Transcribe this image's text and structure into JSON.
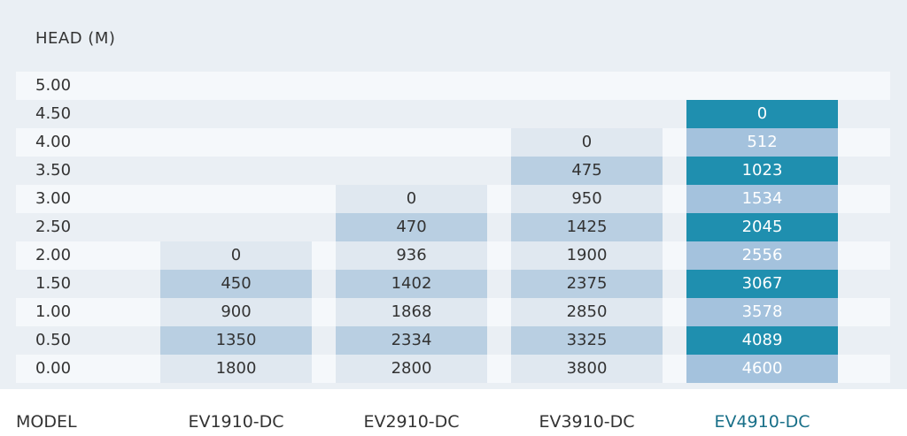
{
  "colors": {
    "panel": "#eaeff4",
    "stripe": "#f5f8fb",
    "light_cell": "#e0e8f0",
    "mid_cell": "#b9cfe2",
    "accent_light": "#a4c2dd",
    "accent_dark": "#1f8faf",
    "highlight_text": "#186f88"
  },
  "chart_data": {
    "type": "table",
    "title": "HEAD  (M)",
    "row_header": "HEAD (M)",
    "column_header": "MODEL",
    "heads": [
      "5.00",
      "4.50",
      "4.00",
      "3.50",
      "3.00",
      "2.50",
      "2.00",
      "1.50",
      "1.00",
      "0.50",
      "0.00"
    ],
    "models": [
      {
        "name": "EV1910-DC",
        "values": [
          null,
          null,
          null,
          null,
          null,
          null,
          "0",
          "450",
          "900",
          "1350",
          "1800"
        ],
        "highlight": false
      },
      {
        "name": "EV2910-DC",
        "values": [
          null,
          null,
          null,
          null,
          "0",
          "470",
          "936",
          "1402",
          "1868",
          "2334",
          "2800"
        ],
        "highlight": false
      },
      {
        "name": "EV3910-DC",
        "values": [
          null,
          null,
          "0",
          "475",
          "950",
          "1425",
          "1900",
          "2375",
          "2850",
          "3325",
          "3800"
        ],
        "highlight": false
      },
      {
        "name": "EV4910-DC",
        "values": [
          null,
          "0",
          "512",
          "1023",
          "1534",
          "2045",
          "2556",
          "3067",
          "3578",
          "4089",
          "4600"
        ],
        "highlight": true
      }
    ]
  },
  "footer": {
    "model_title": "MODEL"
  }
}
